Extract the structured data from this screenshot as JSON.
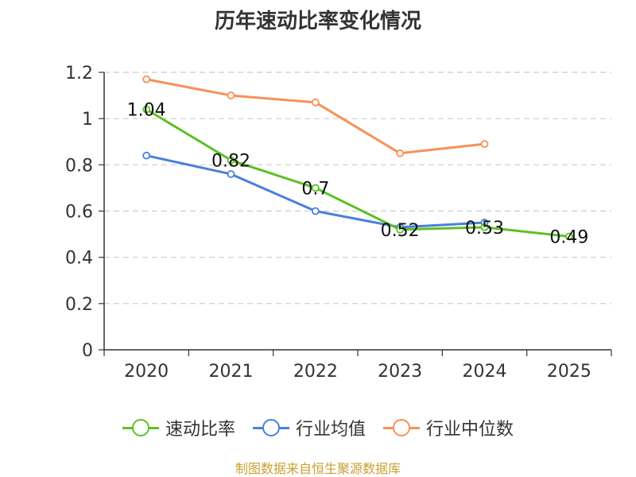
{
  "chart_data": {
    "type": "line",
    "title": "历年速动比率变化情况",
    "categories": [
      "2020",
      "2021",
      "2022",
      "2023",
      "2024",
      "2025"
    ],
    "y_ticks": [
      "0",
      "0.2",
      "0.4",
      "0.6",
      "0.8",
      "1",
      "1.2"
    ],
    "ylim": [
      0,
      1.2
    ],
    "grid": true,
    "legend_position": "bottom",
    "series": [
      {
        "name": "速动比率",
        "color": "#5ec026",
        "values": [
          1.04,
          0.82,
          0.7,
          0.52,
          0.53,
          0.49
        ],
        "labels": [
          "1.04",
          "0.82",
          "0.7",
          "0.52",
          "0.53",
          "0.49"
        ]
      },
      {
        "name": "行业均值",
        "color": "#4a7fdc",
        "values": [
          0.84,
          0.76,
          0.6,
          0.53,
          0.55,
          null
        ]
      },
      {
        "name": "行业中位数",
        "color": "#f79158",
        "values": [
          1.17,
          1.1,
          1.07,
          0.85,
          0.89,
          null
        ]
      }
    ]
  },
  "footer": {
    "source": "制图数据来自恒生聚源数据库"
  }
}
